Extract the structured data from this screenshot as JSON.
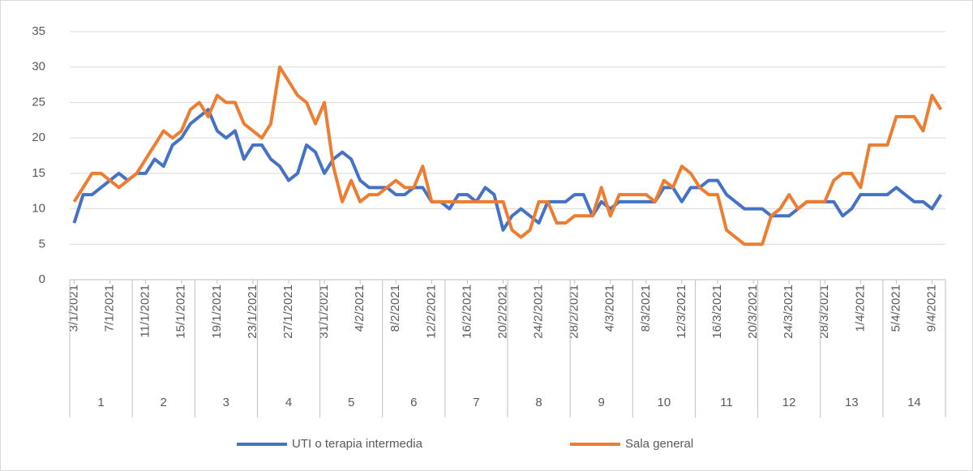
{
  "chart_data": {
    "type": "line",
    "categories": [
      "3/1/2021",
      null,
      null,
      null,
      "7/1/2021",
      null,
      null,
      null,
      "11/1/2021",
      null,
      null,
      null,
      "15/1/2021",
      null,
      null,
      null,
      "19/1/2021",
      null,
      null,
      null,
      "23/1/2021",
      null,
      null,
      null,
      "27/1/2021",
      null,
      null,
      null,
      "31/1/2021",
      null,
      null,
      null,
      "4/2/2021",
      null,
      null,
      null,
      "8/2/2021",
      null,
      null,
      null,
      "12/2/2021",
      null,
      null,
      null,
      "16/2/2021",
      null,
      null,
      null,
      "20/2/2021",
      null,
      null,
      null,
      "24/2/2021",
      null,
      null,
      null,
      "28/2/2021",
      null,
      null,
      null,
      "4/3/2021",
      null,
      null,
      null,
      "8/3/2021",
      null,
      null,
      null,
      "12/3/2021",
      null,
      null,
      null,
      "16/3/2021",
      null,
      null,
      null,
      "20/3/2021",
      null,
      null,
      null,
      "24/3/2021",
      null,
      null,
      null,
      "28/3/2021",
      null,
      null,
      null,
      "1/4/2021",
      null,
      null,
      null,
      "5/4/2021",
      null,
      null,
      null,
      "9/4/2021",
      null
    ],
    "groups": [
      "1",
      "2",
      "3",
      "4",
      "5",
      "6",
      "7",
      "8",
      "9",
      "10",
      "11",
      "12",
      "13",
      "14"
    ],
    "series": [
      {
        "name": "UTI o terapia intermedia",
        "color": "#4472c4",
        "values": [
          8,
          12,
          12,
          13,
          14,
          15,
          14,
          15,
          15,
          17,
          16,
          19,
          20,
          22,
          23,
          24,
          21,
          20,
          21,
          17,
          19,
          19,
          17,
          16,
          14,
          15,
          19,
          18,
          15,
          17,
          18,
          17,
          14,
          13,
          13,
          13,
          12,
          12,
          13,
          13,
          11,
          11,
          10,
          12,
          12,
          11,
          13,
          12,
          7,
          9,
          10,
          9,
          8,
          11,
          11,
          11,
          12,
          12,
          9,
          11,
          10,
          11,
          11,
          11,
          11,
          11,
          13,
          13,
          11,
          13,
          13,
          14,
          14,
          12,
          11,
          10,
          10,
          10,
          9,
          9,
          9,
          10,
          11,
          11,
          11,
          11,
          9,
          10,
          12,
          12,
          12,
          12,
          13,
          12,
          11,
          11,
          10,
          12
        ]
      },
      {
        "name": "Sala general",
        "color": "#ed7d31",
        "values": [
          11,
          13,
          15,
          15,
          14,
          13,
          14,
          15,
          17,
          19,
          21,
          20,
          21,
          24,
          25,
          23,
          26,
          25,
          25,
          22,
          21,
          20,
          22,
          30,
          28,
          26,
          25,
          22,
          25,
          16,
          11,
          14,
          11,
          12,
          12,
          13,
          14,
          13,
          13,
          16,
          11,
          11,
          11,
          11,
          11,
          11,
          11,
          11,
          11,
          7,
          6,
          7,
          11,
          11,
          8,
          8,
          9,
          9,
          9,
          13,
          9,
          12,
          12,
          12,
          12,
          11,
          14,
          13,
          16,
          15,
          13,
          12,
          12,
          7,
          6,
          5,
          5,
          5,
          9,
          10,
          12,
          10,
          11,
          11,
          11,
          14,
          15,
          15,
          13,
          19,
          19,
          19,
          23,
          23,
          23,
          21,
          26,
          24
        ]
      }
    ],
    "ylim": [
      0,
      35
    ],
    "yticks": [
      0,
      5,
      10,
      15,
      20,
      25,
      30,
      35
    ],
    "grid": true,
    "legend": "bottom"
  }
}
